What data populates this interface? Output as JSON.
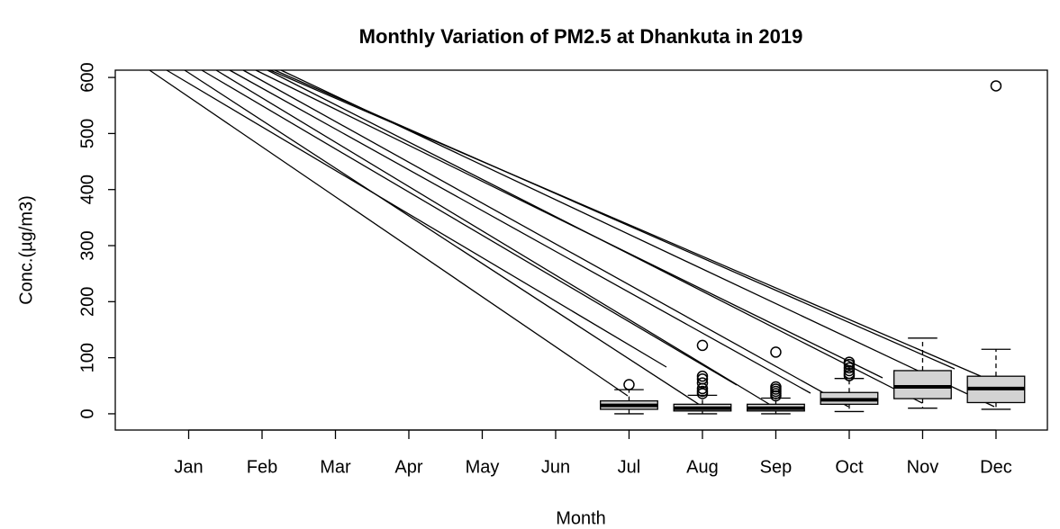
{
  "chart_data": {
    "type": "boxplot",
    "title": "Monthly Variation of PM2.5 at Dhankuta in 2019",
    "x_label": "Month",
    "y_label": "Conc.(µg/m3)",
    "categories": [
      "Jan",
      "Feb",
      "Mar",
      "Apr",
      "May",
      "Jun",
      "Jul",
      "Aug",
      "Sep",
      "Oct",
      "Nov",
      "Dec"
    ],
    "min": [
      null,
      null,
      null,
      null,
      null,
      null,
      0,
      0,
      0,
      4,
      10,
      8
    ],
    "q1": [
      null,
      null,
      null,
      null,
      null,
      null,
      8,
      5,
      5,
      17,
      27,
      20
    ],
    "median": [
      null,
      null,
      null,
      null,
      null,
      null,
      15,
      10,
      10,
      25,
      48,
      45
    ],
    "q3": [
      null,
      null,
      null,
      null,
      null,
      null,
      23,
      17,
      17,
      38,
      77,
      67
    ],
    "max": [
      null,
      null,
      null,
      null,
      null,
      null,
      43,
      33,
      28,
      63,
      135,
      115
    ],
    "outliers": [
      [],
      [],
      [],
      [],
      [],
      [],
      [
        52
      ],
      [
        36,
        40,
        45,
        55,
        62,
        67,
        122
      ],
      [
        32,
        36,
        40,
        44,
        48,
        110
      ],
      [
        68,
        72,
        77,
        82,
        88,
        92
      ],
      [],
      [
        585
      ]
    ],
    "color": "#d3d3d3",
    "ylim": [
      -29,
      613
    ],
    "yticks": [
      0,
      100,
      200,
      300,
      400,
      500,
      600
    ]
  }
}
